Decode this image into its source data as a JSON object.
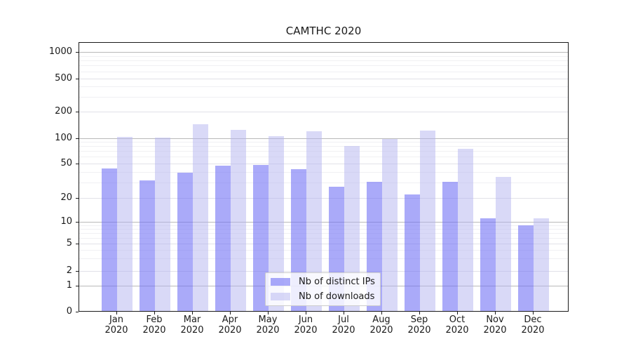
{
  "chart_data": {
    "type": "bar",
    "title": "CAMTHC 2020",
    "categories": [
      "Jan",
      "Feb",
      "Mar",
      "Apr",
      "May",
      "Jun",
      "Jul",
      "Aug",
      "Sep",
      "Oct",
      "Nov",
      "Dec"
    ],
    "x_year": "2020",
    "series": [
      {
        "name": "Nb of distinct IPs",
        "color": "rgba(108,108,245,0.58)",
        "values": [
          44,
          32,
          39,
          47,
          48,
          43,
          27,
          31,
          22,
          31,
          11,
          9
        ]
      },
      {
        "name": "Nb of downloads",
        "color": "rgba(180,180,240,0.5)",
        "values": [
          103,
          102,
          143,
          124,
          105,
          119,
          80,
          97,
          121,
          74,
          35,
          11
        ]
      }
    ],
    "yscale": "symlog",
    "y_ticks": [
      0,
      1,
      2,
      5,
      10,
      20,
      50,
      100,
      200,
      500,
      1000
    ],
    "ylim": [
      0,
      1300
    ],
    "xlabel": "",
    "ylabel": "",
    "grid": true,
    "legend_position": "lower center"
  }
}
